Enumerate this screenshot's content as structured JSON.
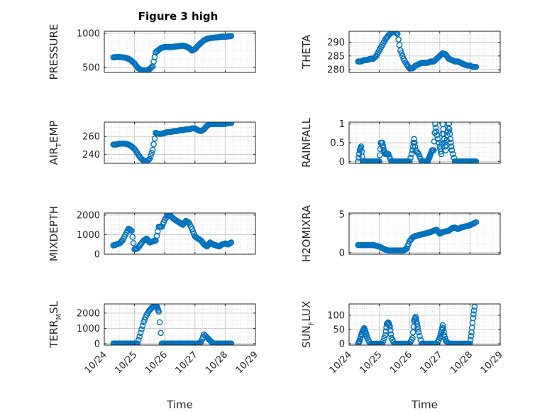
{
  "title": "Figure 3 high",
  "marker_color": "#0072BD",
  "grid_color": "#d9d9d9",
  "chart_data": [
    {
      "type": "scatter",
      "ylabel_main": "PRESSURE",
      "ylabel_sub": "",
      "ylabel_tail": "",
      "xlabel": "",
      "yticks": [
        500,
        1000
      ],
      "ylim": [
        430,
        1030
      ],
      "show_xticklabels": false,
      "x": [
        0.3,
        0.4,
        0.5,
        0.6,
        0.7,
        0.8,
        0.9,
        1.0,
        1.1,
        1.2,
        1.3,
        1.4,
        1.5,
        1.6,
        1.7,
        1.8,
        1.9,
        2.0,
        2.1,
        2.2,
        2.3,
        2.4,
        2.5,
        2.6,
        2.7,
        2.8,
        2.9,
        3.0,
        3.1,
        3.2,
        3.3,
        3.4,
        3.5,
        3.6,
        3.7,
        3.8,
        3.9,
        4.0,
        4.1,
        4.2
      ],
      "y": [
        650,
        655,
        655,
        650,
        645,
        630,
        600,
        560,
        500,
        470,
        455,
        460,
        480,
        520,
        720,
        760,
        790,
        800,
        800,
        800,
        805,
        810,
        815,
        820,
        810,
        790,
        750,
        770,
        820,
        860,
        900,
        920,
        930,
        935,
        940,
        945,
        950,
        950,
        955,
        960
      ]
    },
    {
      "type": "scatter",
      "ylabel_main": "THETA",
      "ylabel_sub": "",
      "ylabel_tail": "",
      "xlabel": "",
      "yticks": [
        280,
        285,
        290
      ],
      "ylim": [
        279,
        294
      ],
      "show_xticklabels": false,
      "x": [
        0.3,
        0.4,
        0.5,
        0.6,
        0.7,
        0.8,
        0.9,
        1.0,
        1.1,
        1.2,
        1.3,
        1.4,
        1.5,
        1.6,
        1.7,
        1.8,
        1.9,
        2.0,
        2.1,
        2.2,
        2.3,
        2.4,
        2.5,
        2.6,
        2.7,
        2.8,
        2.9,
        3.0,
        3.1,
        3.2,
        3.3,
        3.4,
        3.5,
        3.6,
        3.7,
        3.8,
        3.9,
        4.0,
        4.1,
        4.2
      ],
      "y": [
        283,
        283,
        283.5,
        283.5,
        284,
        284,
        285,
        287,
        289,
        291,
        292.5,
        293.5,
        294,
        293,
        287,
        284,
        282,
        280.5,
        280.5,
        281.5,
        282,
        282.5,
        282.5,
        282.5,
        283,
        283,
        284,
        285,
        286,
        285.5,
        284,
        283.5,
        283,
        283,
        282.5,
        282,
        281.5,
        281.5,
        281,
        281
      ]
    },
    {
      "type": "scatter",
      "ylabel_main": "AIR",
      "ylabel_sub": "T",
      "ylabel_tail": "EMP",
      "xlabel": "",
      "yticks": [
        240,
        260
      ],
      "ylim": [
        230,
        276
      ],
      "show_xticklabels": false,
      "x": [
        0.3,
        0.4,
        0.5,
        0.6,
        0.7,
        0.8,
        0.9,
        1.0,
        1.1,
        1.2,
        1.3,
        1.4,
        1.5,
        1.6,
        1.7,
        1.8,
        1.9,
        2.0,
        2.1,
        2.2,
        2.3,
        2.4,
        2.5,
        2.6,
        2.7,
        2.8,
        2.9,
        3.0,
        3.1,
        3.2,
        3.3,
        3.4,
        3.5,
        3.6,
        3.7,
        3.8,
        3.9,
        4.0,
        4.1,
        4.2
      ],
      "y": [
        251,
        251,
        252,
        252,
        252,
        251,
        249,
        246,
        241,
        236,
        233,
        232,
        235,
        245,
        264,
        263,
        263,
        264,
        265,
        265,
        266,
        266,
        267,
        267,
        268,
        268,
        269,
        269,
        267,
        266,
        268,
        272,
        274,
        274,
        274,
        274,
        274,
        274,
        275,
        275
      ]
    },
    {
      "type": "scatter",
      "ylabel_main": "RAINFALL",
      "ylabel_sub": "",
      "ylabel_tail": "",
      "xlabel": "",
      "yticks": [
        0,
        0.5,
        1
      ],
      "ylim": [
        -0.05,
        1.05
      ],
      "show_xticklabels": false,
      "x": [
        0.3,
        0.35,
        0.4,
        0.45,
        0.5,
        0.6,
        0.7,
        0.8,
        0.9,
        1.0,
        1.05,
        1.1,
        1.15,
        1.2,
        1.3,
        1.4,
        1.5,
        1.6,
        1.7,
        1.8,
        1.9,
        2.0,
        2.1,
        2.15,
        2.2,
        2.3,
        2.4,
        2.5,
        2.6,
        2.65,
        2.7,
        2.75,
        2.8,
        2.85,
        2.9,
        3.0,
        3.05,
        3.1,
        3.15,
        3.2,
        3.25,
        3.3,
        3.35,
        3.4,
        3.5,
        3.6,
        3.7,
        3.8,
        3.9,
        4.0,
        4.1,
        4.2
      ],
      "y": [
        0,
        0.3,
        0.4,
        0,
        0,
        0,
        0,
        0,
        0,
        0,
        0.5,
        0.5,
        0.3,
        0.2,
        0.2,
        0,
        0,
        0,
        0,
        0,
        0,
        0,
        0.3,
        0.6,
        0.3,
        0.2,
        0,
        0,
        0,
        0.1,
        0.2,
        0.3,
        0.3,
        1.0,
        0.7,
        0.4,
        0.2,
        1.0,
        0.6,
        0.3,
        0.7,
        1.0,
        0.6,
        0.3,
        0,
        0,
        0,
        0,
        0,
        0,
        0,
        0
      ]
    },
    {
      "type": "scatter",
      "ylabel_main": "MIXDEPTH",
      "ylabel_sub": "",
      "ylabel_tail": "",
      "xlabel": "",
      "yticks": [
        0,
        1000,
        2000
      ],
      "ylim": [
        0,
        2100
      ],
      "show_xticklabels": false,
      "x": [
        0.3,
        0.4,
        0.5,
        0.6,
        0.7,
        0.8,
        0.9,
        1.0,
        1.1,
        1.2,
        1.3,
        1.4,
        1.5,
        1.6,
        1.7,
        1.8,
        1.9,
        2.0,
        2.1,
        2.2,
        2.3,
        2.4,
        2.5,
        2.6,
        2.7,
        2.8,
        2.9,
        3.0,
        3.1,
        3.2,
        3.3,
        3.4,
        3.5,
        3.6,
        3.7,
        3.8,
        3.9,
        4.0,
        4.1,
        4.2
      ],
      "y": [
        450,
        500,
        550,
        700,
        1000,
        1300,
        1200,
        250,
        300,
        500,
        700,
        800,
        600,
        650,
        700,
        1400,
        1400,
        1750,
        2000,
        1950,
        1800,
        1700,
        1600,
        1500,
        1700,
        1600,
        1300,
        900,
        800,
        700,
        500,
        400,
        600,
        500,
        450,
        400,
        500,
        550,
        500,
        600
      ]
    },
    {
      "type": "scatter",
      "ylabel_main": "H2OMIXRA",
      "ylabel_sub": "",
      "ylabel_tail": "",
      "xlabel": "",
      "yticks": [
        0,
        5
      ],
      "ylim": [
        -0.2,
        5.2
      ],
      "show_xticklabels": false,
      "x": [
        0.3,
        0.4,
        0.5,
        0.6,
        0.7,
        0.8,
        0.9,
        1.0,
        1.1,
        1.2,
        1.3,
        1.4,
        1.5,
        1.6,
        1.7,
        1.8,
        1.9,
        2.0,
        2.1,
        2.2,
        2.3,
        2.4,
        2.5,
        2.6,
        2.7,
        2.8,
        2.9,
        3.0,
        3.1,
        3.2,
        3.3,
        3.4,
        3.5,
        3.6,
        3.7,
        3.8,
        3.9,
        4.0,
        4.1,
        4.2
      ],
      "y": [
        1.0,
        1.0,
        1.0,
        1.0,
        1.0,
        1.0,
        0.9,
        0.8,
        0.6,
        0.4,
        0.3,
        0.3,
        0.3,
        0.3,
        0.3,
        0.3,
        0.5,
        1.5,
        2.0,
        2.2,
        2.3,
        2.4,
        2.5,
        2.6,
        2.7,
        2.9,
        3.0,
        2.5,
        2.7,
        2.8,
        2.9,
        3.2,
        3.3,
        3.1,
        3.3,
        3.4,
        3.5,
        3.6,
        3.8,
        4.0
      ]
    },
    {
      "type": "scatter",
      "ylabel_main": "TERR",
      "ylabel_sub": "M",
      "ylabel_tail": "SL",
      "xlabel": "Time",
      "yticks": [
        0,
        1000,
        2000
      ],
      "ylim": [
        -100,
        2600
      ],
      "show_xticklabels": true,
      "x": [
        0.3,
        0.4,
        0.5,
        0.6,
        0.7,
        0.8,
        0.9,
        1.0,
        1.1,
        1.2,
        1.3,
        1.4,
        1.5,
        1.6,
        1.7,
        1.75,
        1.8,
        1.9,
        2.0,
        2.1,
        2.2,
        2.3,
        2.4,
        2.5,
        2.6,
        2.7,
        2.8,
        2.9,
        3.0,
        3.1,
        3.2,
        3.3,
        3.4,
        3.5,
        3.6,
        3.7,
        3.8,
        3.9,
        4.0,
        4.1,
        4.2
      ],
      "y": [
        0,
        0,
        0,
        0,
        0,
        0,
        0,
        0,
        0,
        700,
        1400,
        1900,
        2200,
        2400,
        2500,
        2400,
        2100,
        0,
        0,
        0,
        0,
        0,
        0,
        0,
        0,
        0,
        0,
        0,
        0,
        0,
        100,
        600,
        400,
        200,
        0,
        0,
        0,
        0,
        0,
        0,
        0
      ]
    },
    {
      "type": "scatter",
      "ylabel_main": "SUN",
      "ylabel_sub": "F",
      "ylabel_tail": "LUX",
      "xlabel": "Time",
      "yticks": [
        0,
        50,
        100
      ],
      "ylim": [
        -5,
        140
      ],
      "show_xticklabels": true,
      "x": [
        0.3,
        0.35,
        0.4,
        0.45,
        0.5,
        0.55,
        0.6,
        0.7,
        0.8,
        0.9,
        1.0,
        1.1,
        1.2,
        1.25,
        1.3,
        1.35,
        1.4,
        1.5,
        1.6,
        1.7,
        1.8,
        1.9,
        2.0,
        2.1,
        2.15,
        2.2,
        2.25,
        2.3,
        2.4,
        2.5,
        2.6,
        2.7,
        2.8,
        2.9,
        3.0,
        3.05,
        3.1,
        3.15,
        3.2,
        3.3,
        3.4,
        3.5,
        3.6,
        3.7,
        3.8,
        3.9,
        4.0,
        4.05,
        4.1,
        4.15
      ],
      "y": [
        0,
        10,
        30,
        45,
        55,
        40,
        20,
        0,
        0,
        0,
        0,
        0,
        30,
        70,
        75,
        60,
        20,
        0,
        0,
        0,
        0,
        0,
        0,
        20,
        80,
        95,
        70,
        40,
        0,
        0,
        0,
        0,
        0,
        0,
        20,
        40,
        65,
        30,
        10,
        0,
        0,
        0,
        0,
        0,
        0,
        0,
        0,
        40,
        90,
        130
      ]
    }
  ],
  "xaxis": {
    "ticklabels": [
      "10/24",
      "10/25",
      "10/26",
      "10/27",
      "10/28",
      "10/29"
    ]
  }
}
